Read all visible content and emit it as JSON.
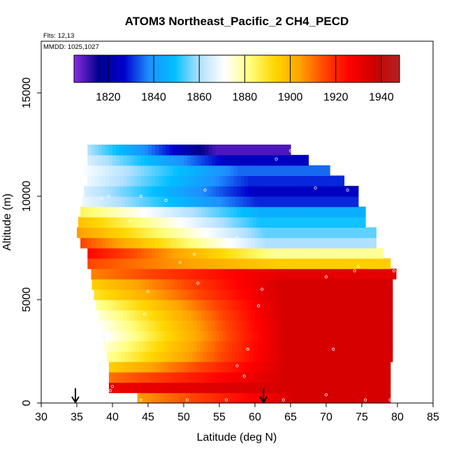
{
  "chart_data": {
    "type": "heatmap",
    "title": "ATOM3 Northeast_Pacific_2 CH4_PECD",
    "flights_text": "Flts: 12,13",
    "mmdd_text": "MMDD: 1025,1027",
    "xlabel": "Latitude (deg N)",
    "ylabel": "Altitude (m)",
    "xlim": [
      30,
      85
    ],
    "ylim": [
      0,
      17500
    ],
    "x_ticks": [
      30,
      35,
      40,
      45,
      50,
      55,
      60,
      65,
      70,
      75,
      80,
      85
    ],
    "y_ticks": [
      0,
      5000,
      10000,
      15000
    ],
    "colorbar": {
      "min": 1805,
      "max": 1948,
      "ticks": [
        1820,
        1840,
        1860,
        1880,
        1900,
        1920,
        1940
      ],
      "colors": [
        "#8a2be2",
        "#00008b",
        "#0000cd",
        "#1e90ff",
        "#00bfff",
        "#b0e0ff",
        "#ffffff",
        "#ffff80",
        "#ffd700",
        "#ffa500",
        "#ff4500",
        "#ff0000",
        "#cd0000",
        "#b22222"
      ]
    },
    "arrows_at_latitude": [
      34.8,
      61.2
    ],
    "alt_bands": [
      {
        "alt": [
          0,
          500
        ],
        "lat": [
          43.5,
          79
        ],
        "c0": 1905,
        "c1": 1935
      },
      {
        "alt": [
          500,
          1000
        ],
        "lat": [
          39.5,
          79
        ],
        "c0": 1930,
        "c1": 1935
      },
      {
        "alt": [
          1000,
          1500
        ],
        "lat": [
          39.5,
          79
        ],
        "c0": 1910,
        "c1": 1935
      },
      {
        "alt": [
          1500,
          2000
        ],
        "lat": [
          39.5,
          79
        ],
        "c0": 1895,
        "c1": 1935
      },
      {
        "alt": [
          2000,
          2500
        ],
        "lat": [
          39.2,
          79.3
        ],
        "c0": 1880,
        "c1": 1935
      },
      {
        "alt": [
          2500,
          3000
        ],
        "lat": [
          38.8,
          79.3
        ],
        "c0": 1875,
        "c1": 1935
      },
      {
        "alt": [
          3000,
          3500
        ],
        "lat": [
          38.5,
          79.3
        ],
        "c0": 1870,
        "c1": 1935
      },
      {
        "alt": [
          3500,
          4000
        ],
        "lat": [
          38.3,
          79.3
        ],
        "c0": 1872,
        "c1": 1935
      },
      {
        "alt": [
          4000,
          4500
        ],
        "lat": [
          38.0,
          79.3
        ],
        "c0": 1875,
        "c1": 1935
      },
      {
        "alt": [
          4500,
          5000
        ],
        "lat": [
          37.7,
          79.3
        ],
        "c0": 1880,
        "c1": 1935
      },
      {
        "alt": [
          5000,
          5500
        ],
        "lat": [
          37.4,
          79.3
        ],
        "c0": 1890,
        "c1": 1935
      },
      {
        "alt": [
          5500,
          6000
        ],
        "lat": [
          37.1,
          79.3
        ],
        "c0": 1895,
        "c1": 1935
      },
      {
        "alt": [
          6000,
          6500
        ],
        "lat": [
          37.0,
          79.8
        ],
        "c0": 1908,
        "c1": 1932
      },
      {
        "alt": [
          6500,
          7000
        ],
        "lat": [
          36.5,
          79.0
        ],
        "c0": 1915,
        "c1": 1895
      },
      {
        "alt": [
          7000,
          7500
        ],
        "lat": [
          36.5,
          78.0
        ],
        "c0": 1925,
        "c1": 1880
      },
      {
        "alt": [
          7500,
          8000
        ],
        "lat": [
          35.5,
          77.0
        ],
        "c0": 1915,
        "c1": 1860
      },
      {
        "alt": [
          8000,
          8500
        ],
        "lat": [
          35.0,
          77.0
        ],
        "c0": 1905,
        "c1": 1855
      },
      {
        "alt": [
          8500,
          9000
        ],
        "lat": [
          35.2,
          75.5
        ],
        "c0": 1898,
        "c1": 1850
      },
      {
        "alt": [
          9000,
          9500
        ],
        "lat": [
          35.5,
          75.5
        ],
        "c0": 1885,
        "c1": 1845
      },
      {
        "alt": [
          9500,
          10000
        ],
        "lat": [
          35.8,
          74.5
        ],
        "c0": 1868,
        "c1": 1830
      },
      {
        "alt": [
          10000,
          10500
        ],
        "lat": [
          36.0,
          74.5
        ],
        "c0": 1865,
        "c1": 1825
      },
      {
        "alt": [
          10500,
          11000
        ],
        "lat": [
          36.5,
          72.5
        ],
        "c0": 1868,
        "c1": 1830
      },
      {
        "alt": [
          11000,
          11500
        ],
        "lat": [
          36.0,
          70.5
        ],
        "c0": 1870,
        "c1": 1835
      },
      {
        "alt": [
          11500,
          12000
        ],
        "lat": [
          36.5,
          67.5
        ],
        "c0": 1865,
        "c1": 1825
      },
      {
        "alt": [
          12000,
          12500
        ],
        "lat": [
          36.5,
          65.0
        ],
        "c0": 1860,
        "c1": 1810
      }
    ],
    "sample_points": [
      [
        44,
        150
      ],
      [
        50.5,
        150
      ],
      [
        56,
        150
      ],
      [
        64,
        150
      ],
      [
        70,
        400
      ],
      [
        75.5,
        150
      ],
      [
        79,
        150
      ],
      [
        40,
        800
      ],
      [
        39.7,
        600
      ],
      [
        58.5,
        1300
      ],
      [
        57.5,
        1800
      ],
      [
        59,
        2600
      ],
      [
        71,
        2600
      ],
      [
        44.5,
        4300
      ],
      [
        60.5,
        4700
      ],
      [
        45,
        5400
      ],
      [
        61,
        5500
      ],
      [
        52,
        5800
      ],
      [
        70,
        6100
      ],
      [
        74,
        6400
      ],
      [
        79.5,
        6400
      ],
      [
        74.5,
        6600
      ],
      [
        49.5,
        6800
      ],
      [
        51.5,
        7200
      ],
      [
        57.5,
        8000
      ],
      [
        42.5,
        8800
      ],
      [
        38.5,
        9900
      ],
      [
        47.5,
        9800
      ],
      [
        44,
        10000
      ],
      [
        39.5,
        10000
      ],
      [
        53,
        10300
      ],
      [
        73,
        10300
      ],
      [
        68.5,
        10400
      ],
      [
        63,
        11800
      ],
      [
        65,
        12200
      ]
    ]
  }
}
